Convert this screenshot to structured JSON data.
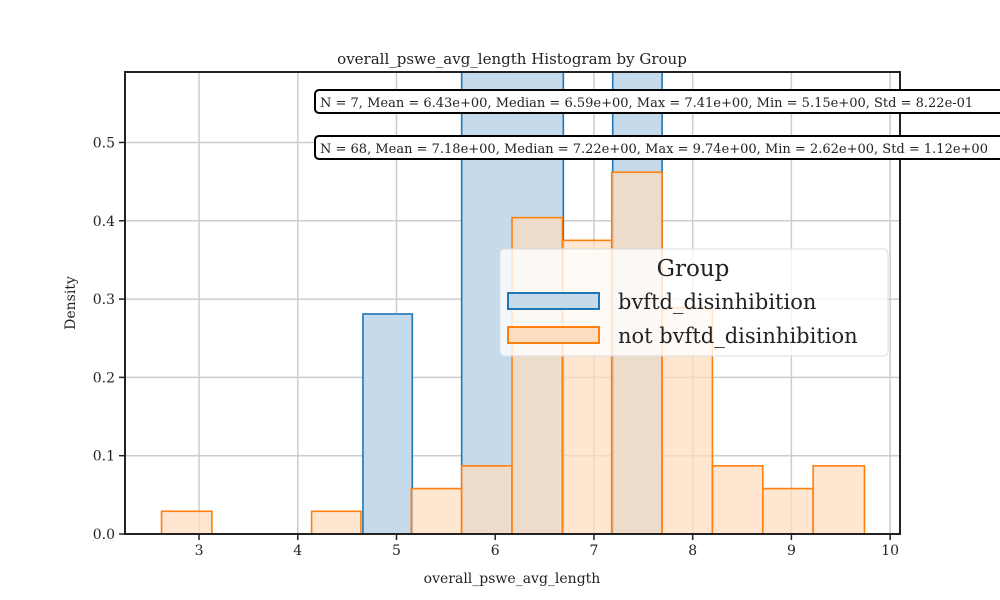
{
  "chart_data": {
    "type": "histogram",
    "title": "overall_pswe_avg_length Histogram by Group",
    "xlabel": "overall_pswe_avg_length",
    "ylabel": "Density",
    "xlim": [
      2.25,
      10.1
    ],
    "ylim": [
      0,
      0.59
    ],
    "xticks": [
      3,
      4,
      5,
      6,
      7,
      8,
      9,
      10
    ],
    "yticks": [
      0.0,
      0.1,
      0.2,
      0.3,
      0.4,
      0.5
    ],
    "ytick_labels": [
      "0.0",
      "0.1",
      "0.2",
      "0.3",
      "0.4",
      "0.5"
    ],
    "grid": true,
    "legend": {
      "title": "Group",
      "placement": "center-right"
    },
    "series": [
      {
        "name": "bvftd_disinhibition",
        "color": "#1f77b4",
        "fill": "#c5daea",
        "bins": [
          {
            "x0": 4.66,
            "x1": 5.16,
            "density": 0.281
          },
          {
            "x0": 5.66,
            "x1": 6.69,
            "density": 0.59
          },
          {
            "x0": 7.19,
            "x1": 7.69,
            "density": 0.59
          }
        ]
      },
      {
        "name": "not bvftd_disinhibition",
        "color": "#ff7f0e",
        "fill": "#fedcbf",
        "bins": [
          {
            "x0": 2.62,
            "x1": 3.13,
            "density": 0.029
          },
          {
            "x0": 3.13,
            "x1": 3.63,
            "density": 0.0
          },
          {
            "x0": 3.63,
            "x1": 4.14,
            "density": 0.0
          },
          {
            "x0": 4.14,
            "x1": 4.64,
            "density": 0.029
          },
          {
            "x0": 4.64,
            "x1": 5.15,
            "density": 0.0
          },
          {
            "x0": 5.15,
            "x1": 5.66,
            "density": 0.058
          },
          {
            "x0": 5.66,
            "x1": 6.17,
            "density": 0.087
          },
          {
            "x0": 6.17,
            "x1": 6.68,
            "density": 0.404
          },
          {
            "x0": 6.68,
            "x1": 7.18,
            "density": 0.375
          },
          {
            "x0": 7.18,
            "x1": 7.69,
            "density": 0.462
          },
          {
            "x0": 7.69,
            "x1": 8.2,
            "density": 0.289
          },
          {
            "x0": 8.2,
            "x1": 8.71,
            "density": 0.087
          },
          {
            "x0": 8.71,
            "x1": 9.22,
            "density": 0.058
          },
          {
            "x0": 9.22,
            "x1": 9.74,
            "density": 0.087
          }
        ]
      }
    ],
    "annotations": [
      "N = 7, Mean = 6.43e+00, Median = 6.59e+00, Max = 7.41e+00, Min = 5.15e+00, Std = 8.22e-01",
      "N = 68, Mean = 7.18e+00, Median = 7.22e+00, Max = 9.74e+00, Min = 2.62e+00, Std = 1.12e+00"
    ]
  }
}
